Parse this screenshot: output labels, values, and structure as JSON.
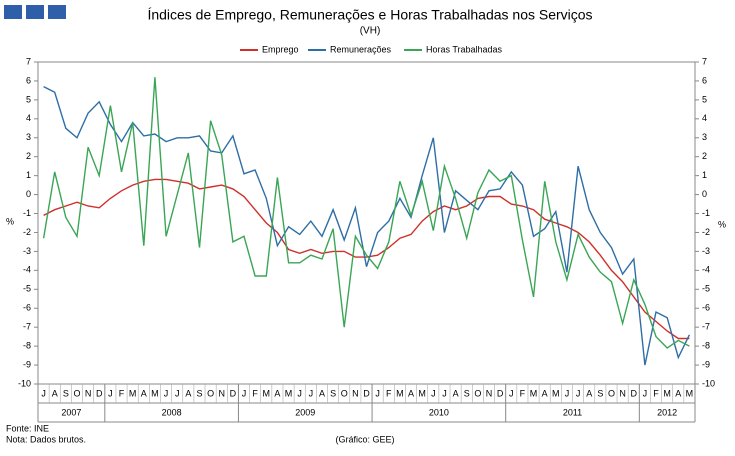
{
  "chart_data": {
    "type": "line",
    "title": "Índices de Emprego,  Remunerações e Horas Trabalhadas  nos Serviços",
    "subtitle": "(VH)",
    "y_label": "%",
    "y2_label": "%",
    "categories": [
      "J",
      "A",
      "S",
      "O",
      "N",
      "D",
      "J",
      "F",
      "M",
      "A",
      "M",
      "J",
      "J",
      "A",
      "S",
      "O",
      "N",
      "D",
      "J",
      "F",
      "M",
      "A",
      "M",
      "J",
      "J",
      "A",
      "S",
      "O",
      "N",
      "D",
      "J",
      "F",
      "M",
      "A",
      "M",
      "J",
      "J",
      "A",
      "S",
      "O",
      "N",
      "D",
      "J",
      "F",
      "M",
      "A",
      "M",
      "J",
      "J",
      "A",
      "S",
      "O",
      "N",
      "D",
      "J",
      "F",
      "M",
      "A",
      "M"
    ],
    "year_labels": [
      "2007",
      "2008",
      "2009",
      "2010",
      "2011",
      "2012"
    ],
    "series": [
      {
        "name": "Emprego",
        "color": "#d0302a",
        "values": [
          -1.1,
          -0.8,
          -0.6,
          -0.4,
          -0.6,
          -0.7,
          -0.2,
          0.2,
          0.5,
          0.7,
          0.8,
          0.8,
          0.7,
          0.6,
          0.3,
          0.4,
          0.5,
          0.3,
          -0.1,
          -0.8,
          -1.5,
          -2.0,
          -2.9,
          -3.1,
          -2.9,
          -3.1,
          -3.0,
          -3.0,
          -3.3,
          -3.3,
          -3.2,
          -2.8,
          -2.3,
          -2.1,
          -1.4,
          -0.9,
          -0.6,
          -0.8,
          -0.6,
          -0.2,
          -0.1,
          -0.1,
          -0.5,
          -0.6,
          -0.8,
          -1.3,
          -1.5,
          -1.7,
          -2.0,
          -2.5,
          -3.2,
          -4.0,
          -4.6,
          -5.4,
          -6.2,
          -6.7,
          -7.2,
          -7.6,
          -7.6
        ]
      },
      {
        "name": "Remunerações",
        "color": "#2e6ea6",
        "values": [
          5.7,
          5.4,
          3.5,
          3.0,
          4.3,
          4.9,
          3.7,
          2.8,
          3.8,
          3.1,
          3.2,
          2.8,
          3.0,
          3.0,
          3.1,
          2.3,
          2.2,
          3.1,
          1.1,
          1.3,
          -0.2,
          -2.7,
          -1.7,
          -2.1,
          -1.4,
          -2.2,
          -0.8,
          -2.4,
          -0.7,
          -3.8,
          -2.0,
          -1.4,
          -0.2,
          -1.2,
          1.0,
          3.0,
          -2.0,
          0.2,
          -0.3,
          -0.8,
          0.2,
          0.3,
          1.2,
          0.5,
          -2.2,
          -1.8,
          -0.9,
          -4.1,
          1.5,
          -0.8,
          -2.0,
          -2.8,
          -4.2,
          -3.4,
          -9.0,
          -6.2,
          -6.5,
          -8.6,
          -7.4
        ]
      },
      {
        "name": "Horas Trabalhadas",
        "color": "#3aa655",
        "values": [
          -2.3,
          1.2,
          -1.2,
          -2.2,
          2.5,
          1.0,
          4.7,
          1.2,
          3.8,
          -2.7,
          6.2,
          -2.2,
          0.0,
          2.2,
          -2.8,
          3.9,
          2.1,
          -2.5,
          -2.2,
          -4.3,
          -4.3,
          0.9,
          -3.6,
          -3.6,
          -3.2,
          -3.4,
          -1.8,
          -7.0,
          -2.2,
          -3.2,
          -3.9,
          -2.5,
          0.7,
          -1.1,
          0.7,
          -1.9,
          1.5,
          -0.2,
          -2.3,
          0.1,
          1.3,
          0.7,
          1.0,
          -2.4,
          -5.4,
          0.7,
          -2.5,
          -4.5,
          -2.1,
          -3.3,
          -4.1,
          -4.6,
          -6.8,
          -4.5,
          -5.8,
          -7.5,
          -8.1,
          -7.7,
          -8.0
        ]
      }
    ],
    "ylim": [
      -10,
      7
    ],
    "yticks": [
      -10,
      -9,
      -8,
      -7,
      -6,
      -5,
      -4,
      -3,
      -2,
      -1,
      0,
      1,
      2,
      3,
      4,
      5,
      6,
      7
    ],
    "y2lim": [
      -10,
      7
    ],
    "y2ticks": [
      -10,
      -9,
      -8,
      -7,
      -6,
      -5,
      -4,
      -3,
      -2,
      -1,
      0,
      1,
      2,
      3,
      4,
      5,
      6,
      7
    ],
    "legend": "top"
  },
  "footer": {
    "source": "Fonte: INE",
    "note": "Nota: Dados brutos.",
    "credit": "(Gráfico: GEE)"
  }
}
